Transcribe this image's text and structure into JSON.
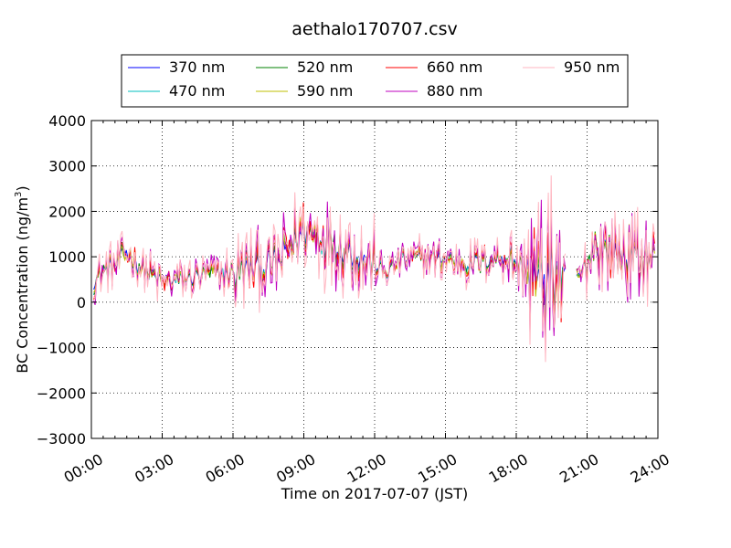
{
  "chart_data": {
    "type": "line",
    "title": "aethalo170707.csv",
    "xlabel": "Time on 2017-07-07 (JST)",
    "ylabel": "BC Concentration (ng/m",
    "ylabel_sup": "3",
    "ylabel_end": ")",
    "xlim": [
      0,
      24
    ],
    "ylim": [
      -3000,
      4000
    ],
    "xticks": [
      0,
      3,
      6,
      9,
      12,
      15,
      18,
      21,
      24
    ],
    "xtick_labels": [
      "00:00",
      "03:00",
      "06:00",
      "09:00",
      "12:00",
      "15:00",
      "18:00",
      "21:00",
      "24:00"
    ],
    "yticks": [
      -3000,
      -2000,
      -1000,
      0,
      1000,
      2000,
      3000,
      4000
    ],
    "ytick_labels": [
      "−3000",
      "−2000",
      "−1000",
      "0",
      "1000",
      "2000",
      "3000",
      "4000"
    ],
    "grid": true,
    "legend_position": "top",
    "series": [
      {
        "name": "370 nm",
        "color": "#0000ff",
        "amp": 0.55,
        "noise": 0.3
      },
      {
        "name": "470 nm",
        "color": "#00bfbf",
        "amp": 0.65,
        "noise": 0.35
      },
      {
        "name": "520 nm",
        "color": "#008000",
        "amp": 0.75,
        "noise": 0.4
      },
      {
        "name": "590 nm",
        "color": "#bfbf00",
        "amp": 0.85,
        "noise": 0.45
      },
      {
        "name": "660 nm",
        "color": "#ff0000",
        "amp": 0.95,
        "noise": 0.5
      },
      {
        "name": "880 nm",
        "color": "#bf00bf",
        "amp": 1.25,
        "noise": 0.7
      },
      {
        "name": "950 nm",
        "color": "#ffb6c1",
        "amp": 1.4,
        "noise": 0.9
      }
    ],
    "baseline": {
      "x": [
        0.1,
        0.5,
        1.0,
        1.5,
        2.0,
        3.0,
        4.0,
        5.0,
        6.0,
        7.0,
        8.0,
        8.5,
        9.0,
        9.5,
        10.0,
        11.0,
        12.0,
        12.5,
        13.0,
        14.0,
        15.0,
        16.0,
        17.0,
        17.5,
        18.0,
        18.5,
        19.0,
        19.5,
        20.0,
        20.3,
        20.5,
        21.0,
        21.3,
        22.0,
        23.0,
        23.9
      ],
      "y": [
        450,
        700,
        800,
        1100,
        800,
        450,
        500,
        600,
        650,
        800,
        900,
        1300,
        1600,
        1500,
        1400,
        1100,
        800,
        650,
        900,
        1000,
        950,
        850,
        950,
        1000,
        850,
        700,
        450,
        600,
        550,
        600,
        450,
        800,
        1250,
        1100,
        1000,
        1000
      ]
    },
    "gaps": [
      [
        20.1,
        20.5
      ]
    ]
  }
}
